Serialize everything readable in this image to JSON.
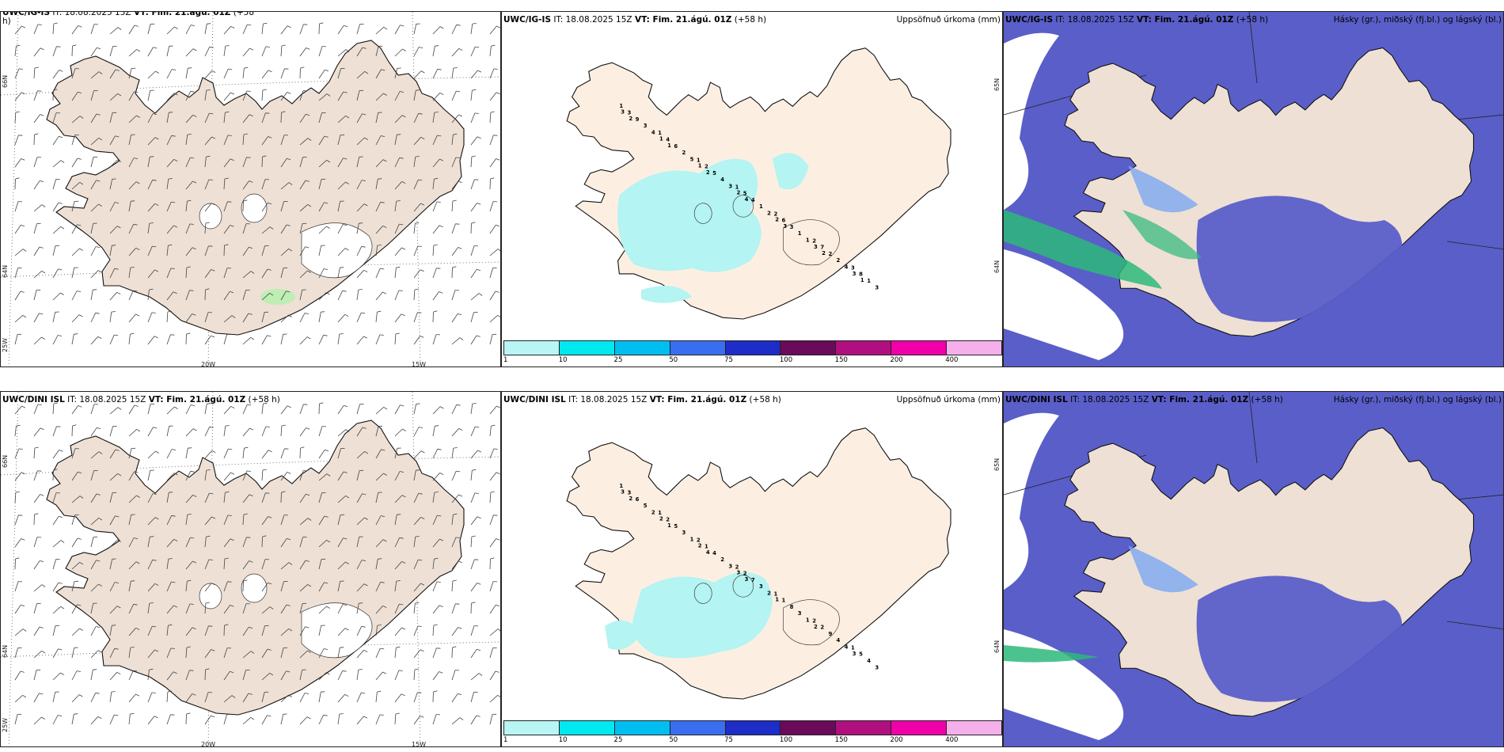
{
  "rows": [
    {
      "model": "UWC/IG-IS",
      "wind_title": {
        "model": "UWC/IG-IS",
        "it": "IT: 18.08.2025 15Z",
        "vt": "VT: Fim. 21.ágú. 01Z",
        "lead": "(+58",
        "lead2": "h)"
      },
      "precip_title": {
        "model": "UWC/IG-IS",
        "it": "IT: 18.08.2025 15Z",
        "vt": "VT: Fim. 21.ágú. 01Z",
        "lead": "(+58 h)"
      },
      "cloud_title": {
        "model": "UWC/IG-IS",
        "it": "IT: 18.08.2025 15Z",
        "vt": "VT: Fim. 21.ágú. 01Z",
        "lead": "(+58 h)"
      }
    },
    {
      "model": "UWC/DINI ISL",
      "wind_title": {
        "model": "UWC/DINI ISL",
        "it": "IT: 18.08.2025 15Z",
        "vt": "VT: Fim. 21.ágú. 01Z",
        "lead": "(+58 h)",
        "lead2": ""
      },
      "precip_title": {
        "model": "UWC/DINI ISL",
        "it": "IT: 18.08.2025 15Z",
        "vt": "VT: Fim. 21.ágú. 01Z",
        "lead": "(+58 h)"
      },
      "cloud_title": {
        "model": "UWC/DINI ISL",
        "it": "IT: 18.08.2025 15Z",
        "vt": "VT: Fim. 21.ágú. 01Z",
        "lead": "(+58 h)"
      }
    }
  ],
  "precip_label": "Uppsöfnuð úrkoma (mm)",
  "cloud_label": "Hásky (gr.), miðský (fj.bl.) og lágský (bl.)",
  "lat_labels": [
    "66N",
    "64N"
  ],
  "lon_labels": [
    "25W",
    "20W",
    "15W"
  ],
  "precip_right_labels": [
    "65N",
    "64N"
  ],
  "colorbar": {
    "ticks": [
      "1",
      "10",
      "25",
      "50",
      "75",
      "100",
      "150",
      "200",
      "400"
    ],
    "colors": [
      "#b8f5f5",
      "#00e8f0",
      "#00bff0",
      "#3a6ef0",
      "#1e2cc8",
      "#6a0a5a",
      "#b0107f",
      "#f000a8",
      "#f5b0ec"
    ]
  },
  "colors": {
    "land_wind": "#eee0d4",
    "land_precip": "#fcefe2",
    "precip_fill": "#b4f4f2",
    "ocean_cloud": "#5a5ec8",
    "low_cloud_light": "#7aa8f0",
    "high_cloud": "#2db87a",
    "wind_barb": "#444444",
    "wind_green": "#b8f0b0"
  },
  "precip_numbers_top": [
    "1",
    "1",
    "1",
    "1",
    "2",
    "2",
    "3",
    "3",
    "4",
    "2",
    "5",
    "6",
    "7",
    "8",
    "9",
    "6",
    "5",
    "4",
    "3",
    "2",
    "1",
    "3",
    "2",
    "4",
    "1",
    "1",
    "2",
    "3",
    "4",
    "5",
    "3",
    "2",
    "1",
    "4",
    "3",
    "1",
    "1",
    "2",
    "2",
    "3",
    "3",
    "2",
    "1",
    "2",
    "4",
    "3",
    "2",
    "1"
  ],
  "precip_numbers_bottom": [
    "1",
    "1",
    "2",
    "2",
    "1",
    "2",
    "1",
    "3",
    "2",
    "1",
    "2",
    "1",
    "2",
    "5",
    "6",
    "5",
    "4",
    "7",
    "8",
    "9",
    "4",
    "5",
    "3",
    "2",
    "3",
    "3",
    "4",
    "3",
    "2",
    "1",
    "3",
    "2",
    "1",
    "4",
    "3",
    "2",
    "2",
    "3",
    "1",
    "2",
    "3",
    "2",
    "1",
    "4",
    "3"
  ]
}
